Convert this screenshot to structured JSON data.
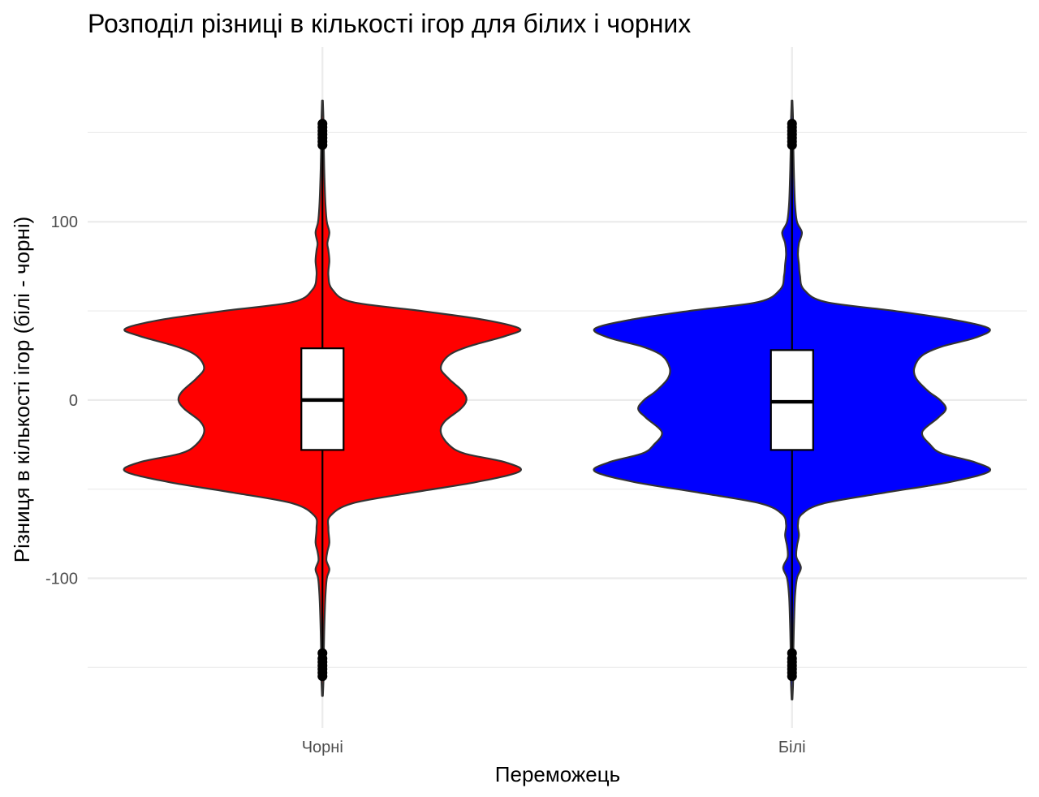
{
  "chart_data": {
    "type": "violin",
    "title": "Розподіл різниці в кількості ігор для білих і чорних",
    "xlabel": "Переможець",
    "ylabel": "Різниця в кількості ігор (білі - чорні)",
    "categories": [
      "Чорні",
      "Білі"
    ],
    "y_ticks": [
      -100,
      0,
      100
    ],
    "y_tick_labels": [
      "-100",
      "0",
      "100"
    ],
    "ylim": [
      -184,
      198
    ],
    "grid": true,
    "legend": "none",
    "series": [
      {
        "category": "Чорні",
        "fill": "#ff0000",
        "box": {
          "q1": -28,
          "median": 0,
          "q3": 29,
          "whisker_low": -150,
          "whisker_high": 150
        },
        "outliers_low": [
          -142,
          -145,
          -147,
          -149,
          -151,
          -153,
          -155
        ],
        "outliers_high": [
          143,
          145,
          147,
          149,
          151,
          153,
          155
        ],
        "density_profile": [
          [
            -166,
            0.002
          ],
          [
            -158,
            0.005
          ],
          [
            -150,
            0.007
          ],
          [
            -140,
            0.007
          ],
          [
            -125,
            0.01
          ],
          [
            -110,
            0.015
          ],
          [
            -100,
            0.022
          ],
          [
            -95,
            0.035
          ],
          [
            -90,
            0.02
          ],
          [
            -85,
            0.025
          ],
          [
            -80,
            0.035
          ],
          [
            -72,
            0.03
          ],
          [
            -65,
            0.04
          ],
          [
            -58,
            0.15
          ],
          [
            -52,
            0.45
          ],
          [
            -46,
            0.78
          ],
          [
            -40,
            1.0
          ],
          [
            -35,
            0.93
          ],
          [
            -30,
            0.72
          ],
          [
            -25,
            0.64
          ],
          [
            -18,
            0.6
          ],
          [
            -12,
            0.62
          ],
          [
            -5,
            0.7
          ],
          [
            0,
            0.73
          ],
          [
            5,
            0.71
          ],
          [
            12,
            0.64
          ],
          [
            18,
            0.6
          ],
          [
            25,
            0.64
          ],
          [
            30,
            0.74
          ],
          [
            36,
            0.93
          ],
          [
            40,
            1.0
          ],
          [
            45,
            0.82
          ],
          [
            50,
            0.5
          ],
          [
            55,
            0.15
          ],
          [
            62,
            0.05
          ],
          [
            70,
            0.03
          ],
          [
            78,
            0.035
          ],
          [
            84,
            0.03
          ],
          [
            88,
            0.025
          ],
          [
            94,
            0.035
          ],
          [
            100,
            0.022
          ],
          [
            110,
            0.015
          ],
          [
            125,
            0.01
          ],
          [
            140,
            0.007
          ],
          [
            150,
            0.007
          ],
          [
            158,
            0.005
          ],
          [
            168,
            0.002
          ]
        ]
      },
      {
        "category": "Білі",
        "fill": "#0000ff",
        "box": {
          "q1": -28,
          "median": -1,
          "q3": 28,
          "whisker_low": -150,
          "whisker_high": 150
        },
        "outliers_low": [
          -142,
          -145,
          -147,
          -149,
          -151,
          -153,
          -155
        ],
        "outliers_high": [
          143,
          145,
          147,
          149,
          151,
          153,
          155
        ],
        "density_profile": [
          [
            -168,
            0.002
          ],
          [
            -160,
            0.005
          ],
          [
            -150,
            0.007
          ],
          [
            -140,
            0.007
          ],
          [
            -125,
            0.01
          ],
          [
            -110,
            0.015
          ],
          [
            -100,
            0.025
          ],
          [
            -94,
            0.045
          ],
          [
            -88,
            0.022
          ],
          [
            -82,
            0.025
          ],
          [
            -76,
            0.035
          ],
          [
            -70,
            0.03
          ],
          [
            -64,
            0.05
          ],
          [
            -58,
            0.16
          ],
          [
            -52,
            0.47
          ],
          [
            -46,
            0.8
          ],
          [
            -40,
            1.0
          ],
          [
            -35,
            0.93
          ],
          [
            -30,
            0.76
          ],
          [
            -25,
            0.7
          ],
          [
            -18,
            0.66
          ],
          [
            -10,
            0.74
          ],
          [
            -5,
            0.78
          ],
          [
            0,
            0.75
          ],
          [
            5,
            0.69
          ],
          [
            12,
            0.63
          ],
          [
            18,
            0.62
          ],
          [
            25,
            0.66
          ],
          [
            30,
            0.76
          ],
          [
            35,
            0.93
          ],
          [
            40,
            1.0
          ],
          [
            45,
            0.82
          ],
          [
            50,
            0.52
          ],
          [
            55,
            0.17
          ],
          [
            62,
            0.06
          ],
          [
            70,
            0.04
          ],
          [
            76,
            0.035
          ],
          [
            82,
            0.03
          ],
          [
            88,
            0.035
          ],
          [
            94,
            0.05
          ],
          [
            100,
            0.025
          ],
          [
            110,
            0.015
          ],
          [
            125,
            0.01
          ],
          [
            140,
            0.007
          ],
          [
            150,
            0.007
          ],
          [
            158,
            0.005
          ],
          [
            168,
            0.002
          ]
        ]
      }
    ]
  }
}
